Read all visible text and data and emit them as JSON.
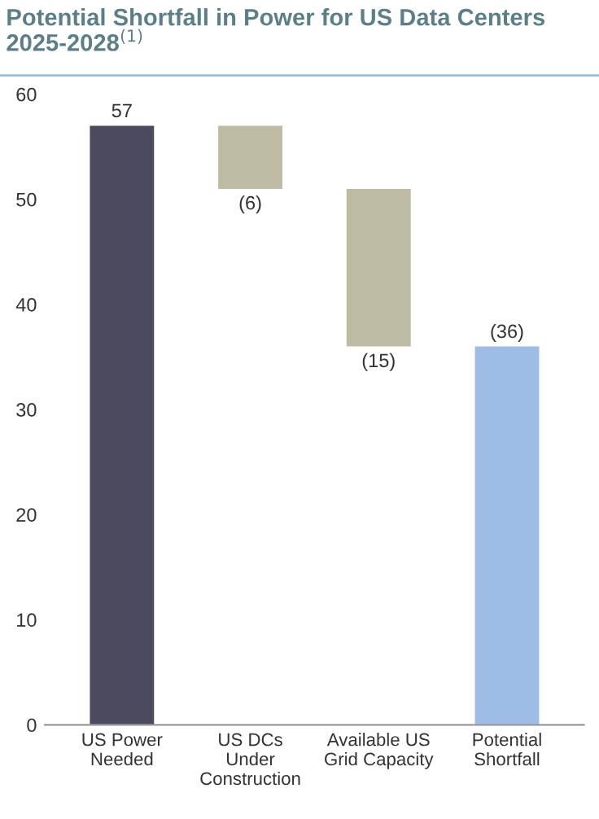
{
  "chart_data": {
    "type": "bar",
    "title": "Potential Shortfall in Power for US Data Centers 2025-2028$^{(1)}$",
    "categories": [
      "US Power\nNeeded",
      "US DCs\nUnder\nConstruction",
      "Available US\nGrid Capacity",
      "Potential\nShortfall"
    ],
    "values": [
      57,
      -6,
      -15,
      36
    ],
    "base": [
      0,
      57,
      51,
      0
    ],
    "colors": [
      "#4b4a5f",
      "#bdbba2",
      "#bdbba2",
      "#9ebde6"
    ],
    "value_labels": [
      "57",
      "(6)",
      "(15)",
      "(36)"
    ],
    "ylim": [
      0,
      60
    ],
    "yticks": [
      0,
      10,
      20,
      30,
      40,
      50,
      60
    ],
    "grid": false,
    "legend": false
  }
}
